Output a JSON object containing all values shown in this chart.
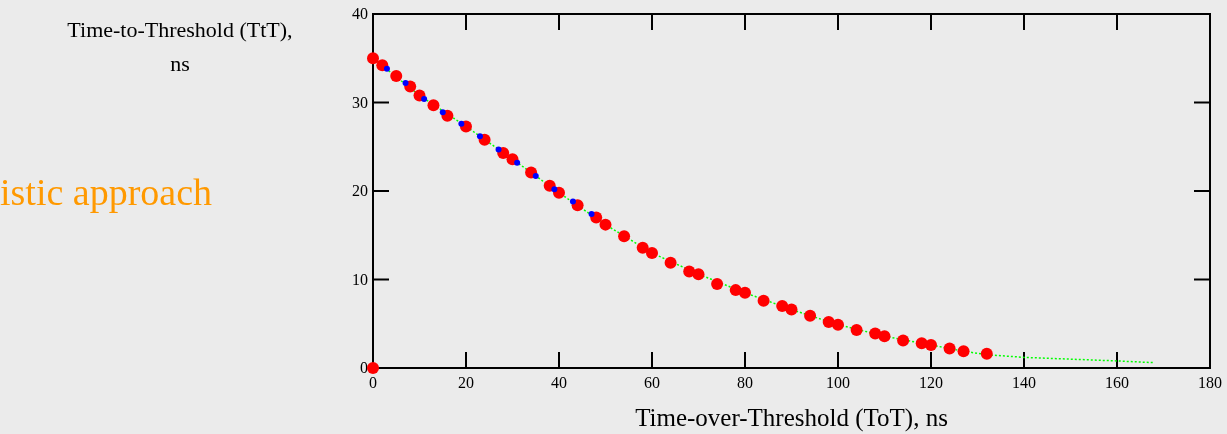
{
  "chart_data": {
    "type": "scatter",
    "xlabel": "Time-over-Threshold (ToT), ns",
    "ylabel": "Time-to-Threshold (TtT), ns",
    "annotations": [
      "istic approach"
    ],
    "xlim": [
      0,
      180
    ],
    "xticks": [
      0,
      20,
      40,
      60,
      80,
      100,
      120,
      140,
      160,
      180
    ],
    "ylim": [
      0,
      40
    ],
    "yticks": [
      0,
      10,
      20,
      30,
      40
    ],
    "grid": false,
    "marker": "circle",
    "series": [
      {
        "color": "#ff0000",
        "x": [
          0,
          0,
          2,
          5,
          8,
          10,
          13,
          16,
          20,
          24,
          28,
          30,
          34,
          38,
          40,
          44,
          48,
          50,
          54,
          58,
          60,
          64,
          68,
          70,
          74,
          78,
          80,
          84,
          88,
          90,
          94,
          98,
          100,
          104,
          108,
          110,
          114,
          118,
          120,
          124,
          127,
          132
        ],
        "values": [
          0,
          35,
          34.2,
          33,
          31.8,
          30.8,
          29.7,
          28.5,
          27.3,
          25.8,
          24.3,
          23.6,
          22.1,
          20.6,
          19.8,
          18.4,
          17,
          16.2,
          14.9,
          13.6,
          13,
          11.9,
          10.9,
          10.6,
          9.5,
          8.8,
          8.5,
          7.6,
          7,
          6.6,
          5.9,
          5.2,
          4.9,
          4.3,
          3.9,
          3.6,
          3.1,
          2.8,
          2.6,
          2.2,
          1.9,
          1.6
        ]
      },
      {
        "color": "#0000ff",
        "x": [
          3,
          7,
          11,
          15,
          19,
          23,
          27,
          31,
          35,
          39,
          43,
          47
        ],
        "values": [
          33.8,
          32.2,
          30.4,
          28.9,
          27.6,
          26.2,
          24.7,
          23.2,
          21.7,
          20.2,
          18.8,
          17.4
        ]
      },
      {
        "type": "line",
        "color": "#00ff00",
        "line_style": "dotted",
        "marker": "none",
        "x": [
          0,
          10,
          20,
          30,
          40,
          50,
          60,
          70,
          80,
          90,
          100,
          110,
          120,
          127,
          132,
          140,
          150,
          160,
          168
        ],
        "values": [
          35,
          30.8,
          27.3,
          23.6,
          19.8,
          16.2,
          13,
          10.6,
          8.5,
          6.6,
          4.9,
          3.6,
          2.6,
          1.9,
          1.5,
          1.2,
          1.0,
          0.8,
          0.6
        ]
      }
    ]
  }
}
